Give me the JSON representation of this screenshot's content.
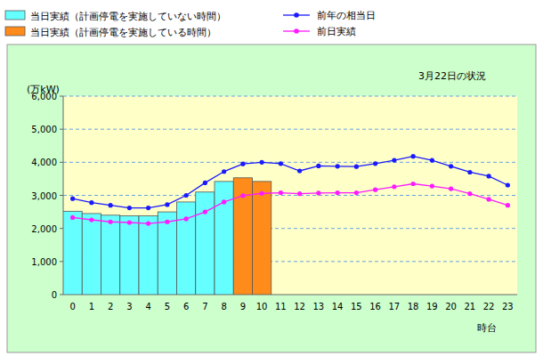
{
  "chart_data": {
    "type": "bar",
    "title": "3月22日の状況",
    "y_label": "(万kW)",
    "x_label": "時台",
    "categories": [
      "0",
      "1",
      "2",
      "3",
      "4",
      "5",
      "6",
      "7",
      "8",
      "9",
      "10",
      "11",
      "12",
      "13",
      "14",
      "15",
      "16",
      "17",
      "18",
      "19",
      "20",
      "21",
      "22",
      "23"
    ],
    "series": [
      {
        "name": "当日実績（計画停電を実施していない時間）",
        "type": "bar",
        "color": "#66ffff",
        "values": [
          2520,
          2450,
          2400,
          2380,
          2380,
          2500,
          2800,
          3100,
          3420,
          null,
          null,
          null,
          null,
          null,
          null,
          null,
          null,
          null,
          null,
          null,
          null,
          null,
          null,
          null
        ]
      },
      {
        "name": "当日実績（計画停電を実施している時間）",
        "type": "bar",
        "color": "#ff8c1a",
        "values": [
          null,
          null,
          null,
          null,
          null,
          null,
          null,
          null,
          null,
          3530,
          3420,
          null,
          null,
          null,
          null,
          null,
          null,
          null,
          null,
          null,
          null,
          null,
          null,
          null
        ]
      },
      {
        "name": "前年の相当日",
        "type": "line",
        "color": "#1a1aff",
        "marker": "circle",
        "values": [
          2900,
          2780,
          2700,
          2620,
          2620,
          2720,
          3000,
          3380,
          3720,
          3950,
          4000,
          3960,
          3740,
          3890,
          3880,
          3870,
          3960,
          4060,
          4180,
          4060,
          3880,
          3700,
          3580,
          3310
        ]
      },
      {
        "name": "前日実績",
        "type": "line",
        "color": "#ff1aff",
        "marker": "circle",
        "values": [
          2330,
          2260,
          2200,
          2180,
          2150,
          2200,
          2290,
          2500,
          2800,
          2990,
          3060,
          3080,
          3050,
          3070,
          3080,
          3080,
          3170,
          3260,
          3350,
          3280,
          3200,
          3050,
          2880,
          2700
        ]
      }
    ],
    "ylim": [
      0,
      6000
    ],
    "yticks": [
      0,
      {
        "value": 1000,
        "label": "1,000"
      },
      {
        "value": 2000,
        "label": "2,000"
      },
      {
        "value": 3000,
        "label": "3,000"
      },
      {
        "value": 4000,
        "label": "4,000"
      },
      {
        "value": 5000,
        "label": "5,000"
      },
      {
        "value": 6000,
        "label": "6,000"
      }
    ],
    "grid": true,
    "legend": "top"
  }
}
